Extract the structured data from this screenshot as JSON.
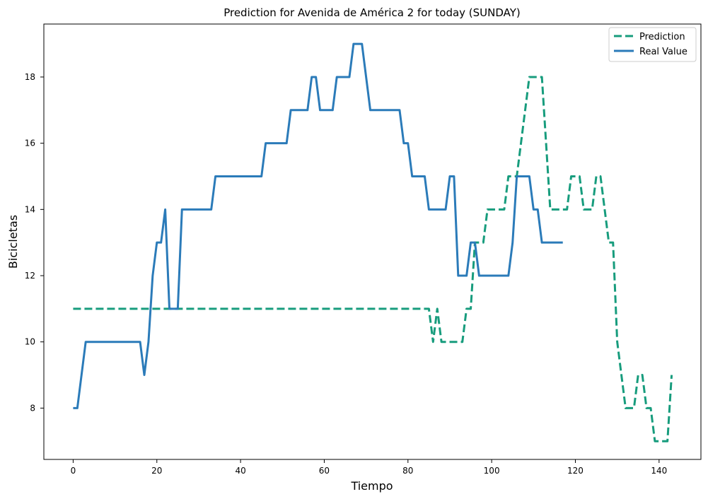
{
  "chart_data": {
    "type": "line",
    "title": "Prediction for Avenida de América 2 for today (SUNDAY)",
    "xlabel": "Tiempo",
    "ylabel": "Bicicletas",
    "xlim": [
      -7,
      150
    ],
    "ylim": [
      6.45,
      19.6
    ],
    "xticks": [
      0,
      20,
      40,
      60,
      80,
      100,
      120,
      140
    ],
    "yticks": [
      8,
      10,
      12,
      14,
      16,
      18
    ],
    "grid": false,
    "legend_position": "top-right",
    "series": [
      {
        "name": "Prediction",
        "color": "#179c7d",
        "style": "dashed",
        "x": [
          0,
          1,
          2,
          3,
          4,
          5,
          6,
          7,
          8,
          9,
          10,
          11,
          12,
          13,
          14,
          15,
          16,
          17,
          18,
          19,
          20,
          21,
          22,
          23,
          24,
          25,
          26,
          27,
          28,
          29,
          30,
          31,
          32,
          33,
          34,
          35,
          36,
          37,
          38,
          39,
          40,
          41,
          42,
          43,
          44,
          45,
          46,
          47,
          48,
          49,
          50,
          51,
          52,
          53,
          54,
          55,
          56,
          57,
          58,
          59,
          60,
          61,
          62,
          63,
          64,
          65,
          66,
          67,
          68,
          69,
          70,
          71,
          72,
          73,
          74,
          75,
          76,
          77,
          78,
          79,
          80,
          81,
          82,
          83,
          84,
          85,
          86,
          87,
          88,
          89,
          90,
          91,
          92,
          93,
          94,
          95,
          96,
          97,
          98,
          99,
          100,
          101,
          102,
          103,
          104,
          105,
          106,
          107,
          108,
          109,
          110,
          111,
          112,
          113,
          114,
          115,
          116,
          117,
          118,
          119,
          120,
          121,
          122,
          123,
          124,
          125,
          126,
          127,
          128,
          129,
          130,
          131,
          132,
          133,
          134,
          135,
          136,
          137,
          138,
          139,
          140,
          141,
          142,
          143
        ],
        "y": [
          11,
          11,
          11,
          11,
          11,
          11,
          11,
          11,
          11,
          11,
          11,
          11,
          11,
          11,
          11,
          11,
          11,
          11,
          11,
          11,
          11,
          11,
          11,
          11,
          11,
          11,
          11,
          11,
          11,
          11,
          11,
          11,
          11,
          11,
          11,
          11,
          11,
          11,
          11,
          11,
          11,
          11,
          11,
          11,
          11,
          11,
          11,
          11,
          11,
          11,
          11,
          11,
          11,
          11,
          11,
          11,
          11,
          11,
          11,
          11,
          11,
          11,
          11,
          11,
          11,
          11,
          11,
          11,
          11,
          11,
          11,
          11,
          11,
          11,
          11,
          11,
          11,
          11,
          11,
          11,
          11,
          11,
          11,
          11,
          11,
          11,
          10,
          11,
          10,
          10,
          10,
          10,
          10,
          10,
          11,
          11,
          13,
          13,
          13,
          14,
          14,
          14,
          14,
          14,
          15,
          15,
          15,
          16,
          17,
          18,
          18,
          18,
          18,
          16,
          14,
          14,
          14,
          14,
          14,
          15,
          15,
          15,
          14,
          14,
          14,
          15,
          15,
          14,
          13,
          13,
          10,
          9,
          8,
          8,
          8,
          9,
          9,
          8,
          8,
          7,
          7,
          7,
          7,
          9
        ]
      },
      {
        "name": "Real Value",
        "color": "#2b7bb9",
        "style": "solid",
        "x": [
          0,
          1,
          2,
          3,
          4,
          5,
          6,
          7,
          8,
          9,
          10,
          11,
          12,
          13,
          14,
          15,
          16,
          17,
          18,
          19,
          20,
          21,
          22,
          23,
          24,
          25,
          26,
          27,
          28,
          29,
          30,
          31,
          32,
          33,
          34,
          35,
          36,
          37,
          38,
          39,
          40,
          41,
          42,
          43,
          44,
          45,
          46,
          47,
          48,
          49,
          50,
          51,
          52,
          53,
          54,
          55,
          56,
          57,
          58,
          59,
          60,
          61,
          62,
          63,
          64,
          65,
          66,
          67,
          68,
          69,
          70,
          71,
          72,
          73,
          74,
          75,
          76,
          77,
          78,
          79,
          80,
          81,
          82,
          83,
          84,
          85,
          86,
          87,
          88,
          89,
          90,
          91,
          92,
          93,
          94,
          95,
          96,
          97,
          98,
          99,
          100,
          101,
          102,
          103,
          104,
          105,
          106,
          107,
          108,
          109,
          110,
          111,
          112,
          113,
          114,
          115,
          116,
          117
        ],
        "y": [
          8,
          8,
          9,
          10,
          10,
          10,
          10,
          10,
          10,
          10,
          10,
          10,
          10,
          10,
          10,
          10,
          10,
          9,
          10,
          12,
          13,
          13,
          14,
          11,
          11,
          11,
          14,
          14,
          14,
          14,
          14,
          14,
          14,
          14,
          15,
          15,
          15,
          15,
          15,
          15,
          15,
          15,
          15,
          15,
          15,
          15,
          16,
          16,
          16,
          16,
          16,
          16,
          17,
          17,
          17,
          17,
          17,
          18,
          18,
          17,
          17,
          17,
          17,
          18,
          18,
          18,
          18,
          19,
          19,
          19,
          18,
          17,
          17,
          17,
          17,
          17,
          17,
          17,
          17,
          16,
          16,
          15,
          15,
          15,
          15,
          14,
          14,
          14,
          14,
          14,
          15,
          15,
          12,
          12,
          12,
          13,
          13,
          12,
          12,
          12,
          12,
          12,
          12,
          12,
          12,
          13,
          15,
          15,
          15,
          15,
          14,
          14,
          13,
          13,
          13,
          13,
          13,
          13
        ]
      }
    ]
  }
}
